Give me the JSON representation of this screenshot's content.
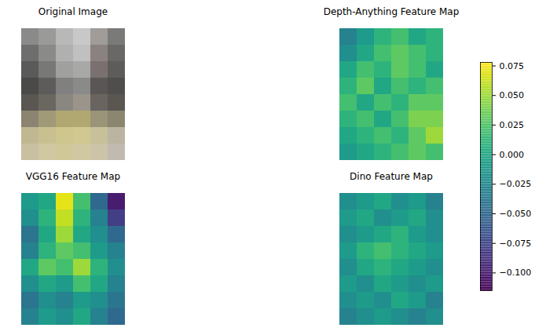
{
  "chart_data": {
    "type": "image_grid",
    "panels": [
      {
        "type": "image",
        "title": "Original Image",
        "pixels": [
          [
            "#8a8a8a",
            "#9a9a98",
            "#b8b8b8",
            "#c8c8c8",
            "#a09c98",
            "#7a7a78"
          ],
          [
            "#6e6e6e",
            "#8a8a88",
            "#b0b0b0",
            "#c0c0c0",
            "#8a8280",
            "#6a6866"
          ],
          [
            "#5a5a5a",
            "#787876",
            "#a0a09e",
            "#a8a8a6",
            "#7a7070",
            "#5e5c5a"
          ],
          [
            "#4a4a48",
            "#5e5c5a",
            "#808080",
            "#8a8a88",
            "#5a5656",
            "#504e4c"
          ],
          [
            "#5a5652",
            "#6a6660",
            "#8a8680",
            "#9a948a",
            "#6a6460",
            "#5a5652"
          ],
          [
            "#8a8470",
            "#a09a78",
            "#b0a870",
            "#b0a870",
            "#9a9478",
            "#8a8670"
          ],
          [
            "#c0b890",
            "#c8c090",
            "#cfc68e",
            "#d0c890",
            "#c8c098",
            "#bab4a0"
          ],
          [
            "#c8c0a0",
            "#d0c8a0",
            "#d0c898",
            "#d0c8a0",
            "#ccc4a8",
            "#c0bab0"
          ]
        ]
      },
      {
        "type": "heatmap",
        "title": "Depth-Anything Feature Map",
        "cells": [
          [
            -0.03,
            -0.01,
            0.01,
            0.02,
            0.0,
            0.01
          ],
          [
            -0.02,
            0.0,
            0.02,
            0.03,
            0.02,
            0.01
          ],
          [
            0.0,
            0.02,
            0.01,
            0.03,
            0.02,
            0.0
          ],
          [
            0.01,
            0.03,
            0.0,
            0.02,
            0.01,
            0.02
          ],
          [
            0.02,
            0.0,
            0.02,
            0.01,
            0.03,
            0.03
          ],
          [
            0.01,
            0.02,
            0.0,
            0.02,
            0.04,
            0.04
          ],
          [
            0.0,
            0.01,
            0.02,
            0.01,
            0.03,
            0.05
          ],
          [
            -0.01,
            0.0,
            0.01,
            0.02,
            0.03,
            0.02
          ]
        ]
      },
      {
        "type": "heatmap",
        "title": "VGG16 Feature Map",
        "cells": [
          [
            -0.01,
            0.0,
            0.07,
            0.02,
            -0.05,
            -0.1
          ],
          [
            -0.02,
            0.01,
            0.06,
            0.01,
            -0.03,
            -0.08
          ],
          [
            -0.04,
            0.0,
            0.05,
            0.0,
            -0.02,
            -0.05
          ],
          [
            -0.03,
            0.01,
            0.03,
            0.02,
            -0.01,
            -0.03
          ],
          [
            0.0,
            0.03,
            0.02,
            0.05,
            0.01,
            -0.02
          ],
          [
            -0.02,
            0.0,
            -0.01,
            0.02,
            0.0,
            -0.03
          ],
          [
            -0.04,
            -0.02,
            -0.03,
            -0.01,
            -0.02,
            -0.04
          ],
          [
            -0.03,
            -0.01,
            -0.02,
            0.0,
            -0.03,
            -0.05
          ]
        ]
      },
      {
        "type": "heatmap",
        "title": "Dino Feature Map",
        "cells": [
          [
            -0.02,
            -0.01,
            0.0,
            -0.02,
            -0.01,
            -0.03
          ],
          [
            -0.01,
            0.0,
            -0.02,
            -0.01,
            0.0,
            -0.02
          ],
          [
            -0.02,
            -0.01,
            0.0,
            0.01,
            -0.01,
            -0.02
          ],
          [
            -0.01,
            0.01,
            0.02,
            0.01,
            0.0,
            -0.01
          ],
          [
            -0.02,
            0.0,
            0.01,
            0.0,
            -0.01,
            -0.02
          ],
          [
            -0.01,
            -0.02,
            0.0,
            -0.01,
            -0.02,
            -0.01
          ],
          [
            -0.02,
            -0.01,
            -0.02,
            0.0,
            -0.01,
            -0.03
          ],
          [
            -0.03,
            -0.02,
            -0.01,
            -0.02,
            -0.03,
            -0.02
          ]
        ]
      }
    ],
    "colorbar": {
      "range": [
        -0.115,
        0.078
      ],
      "ticks": [
        0.075,
        {
          "value": 0.05,
          "label": "0.050"
        },
        {
          "value": 0.025,
          "label": "0.025"
        },
        {
          "value": 0,
          "label": "0.000"
        },
        {
          "value": -0.025,
          "label": "−0.025"
        },
        {
          "value": -0.05,
          "label": "−0.050"
        },
        {
          "value": -0.075,
          "label": "−0.075"
        },
        {
          "value": -0.1,
          "label": "−0.100"
        }
      ]
    }
  }
}
